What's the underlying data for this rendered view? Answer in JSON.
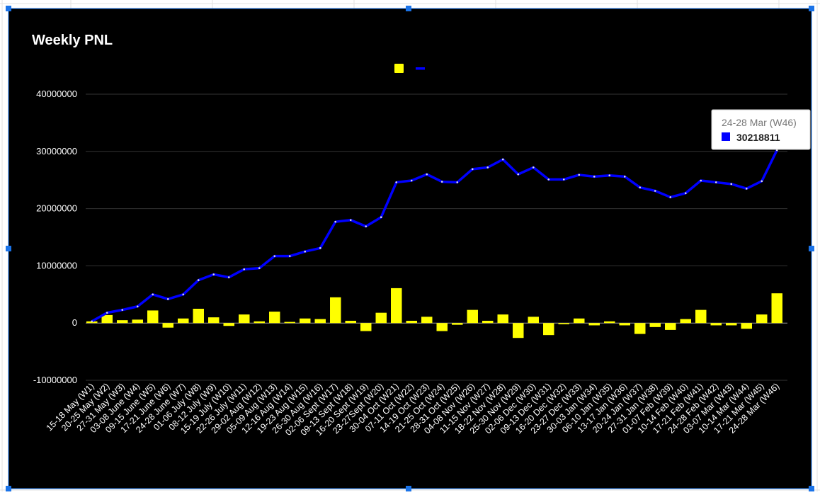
{
  "chart_data": {
    "type": "bar+line",
    "title": "Weekly PNL",
    "categories": [
      "15-18 May (W1)",
      "20-25 May (W2)",
      "27-31 May (W3)",
      "03-08 June (W4)",
      "09-15 June (W5)",
      "17-21 June (W6)",
      "24-28 June (W7)",
      "01-06 July (W8)",
      "08-12 July (W9)",
      "15-19 July (W10)",
      "22-26 July (W11)",
      "29-02 Aug (W12)",
      "05-09 Aug (W13)",
      "12-16 Aug (W14)",
      "19-23 Aug (W15)",
      "26-30 Aug (W16)",
      "02-06 Sept (W17)",
      "09-13 Sept (W18)",
      "16-20 Sept (W19)",
      "23-27Sept (W20)",
      "30-04 Oct (W21)",
      "07-11 Oct (W22)",
      "14-19 Oct (W23)",
      "21-25 Oct (W24)",
      "28-31 Oct (W25)",
      "04-08 Nov (W26)",
      "11-15 Nov (W27)",
      "18-22 Nov (W28)",
      "25-30 Nov (W29)",
      "02-06 Dec (W30)",
      "09-13 Dec (W31)",
      "16-20 Dec (W32)",
      "23-27 Dec (W33)",
      "30-03 Jan (W34)",
      "06-10 Jan (W35)",
      "13-17 Jan (W36)",
      "20-24 Jan (W37)",
      "27-31 Jan (W38)",
      "01-07 Feb (W39)",
      "10-14 Feb (W40)",
      "17-21 Feb (W41)",
      "24-28 Feb (W42)",
      "03-07 Mar (W43)",
      "10-14 Mar (W44)",
      "17-21 Mar (W45)",
      "24-28 Mar (W46)"
    ],
    "series": [
      {
        "type": "bar",
        "color": "#ffff00",
        "values": [
          300000,
          1400000,
          500000,
          600000,
          2200000,
          -800000,
          800000,
          2500000,
          1000000,
          -500000,
          1500000,
          300000,
          2000000,
          200000,
          800000,
          700000,
          4500000,
          400000,
          -1400000,
          1800000,
          6100000,
          400000,
          1100000,
          -1400000,
          -300000,
          2300000,
          400000,
          1500000,
          -2600000,
          1100000,
          -2100000,
          -200000,
          800000,
          -400000,
          300000,
          -400000,
          -1900000,
          -700000,
          -1200000,
          700000,
          2300000,
          -400000,
          -400000,
          -1000000,
          1500000,
          5200000
        ]
      },
      {
        "type": "line",
        "color": "#0000ff",
        "values": [
          300000,
          1800000,
          2300000,
          2900000,
          5000000,
          4200000,
          5000000,
          7500000,
          8500000,
          8000000,
          9400000,
          9600000,
          11700000,
          11700000,
          12500000,
          13100000,
          17700000,
          18000000,
          16900000,
          18500000,
          24600000,
          24900000,
          26000000,
          24700000,
          24600000,
          26900000,
          27200000,
          28600000,
          26000000,
          27200000,
          25100000,
          25100000,
          25900000,
          25600000,
          25800000,
          25600000,
          23700000,
          23100000,
          22000000,
          22700000,
          24900000,
          24600000,
          24300000,
          23500000,
          24800000,
          30218811
        ]
      }
    ],
    "ylim": [
      -10000000,
      40000000
    ],
    "yticks": [
      -10000000,
      0,
      10000000,
      20000000,
      30000000,
      40000000
    ],
    "grid": true,
    "legend": "top",
    "tooltip_index": 45
  }
}
